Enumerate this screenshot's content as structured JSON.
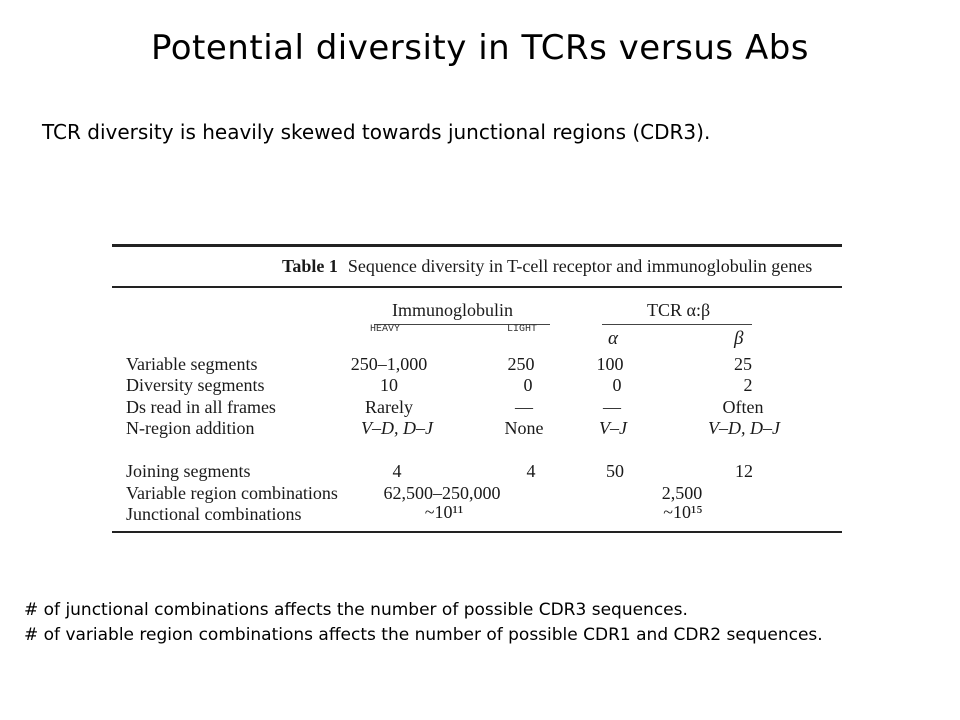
{
  "slide": {
    "title": "Potential diversity in TCRs versus Abs",
    "subtitle": "TCR diversity is heavily skewed towards junctional regions (CDR3)."
  },
  "table": {
    "caption_num": "Table 1",
    "caption_text": "Sequence diversity in T-cell receptor and immunoglobulin genes",
    "group_ig": "Immunoglobulin",
    "group_tcr": "TCR α:β",
    "sub_heavy": "HEAVY",
    "sub_light": "LIGHT",
    "sym_alpha": "α",
    "sym_beta": "β",
    "rows": [
      {
        "label": "Variable segments",
        "heavy": "250–1,000",
        "light": "250",
        "alpha": "100",
        "beta": "25"
      },
      {
        "label": "Diversity segments",
        "heavy": "10",
        "light": "0",
        "alpha": "0",
        "beta": "2"
      },
      {
        "label": "Ds read in all frames",
        "heavy": "Rarely",
        "light": "—",
        "alpha": "—",
        "beta": "Often"
      },
      {
        "label": "N-region addition",
        "heavy": "V–D, D–J",
        "light": "None",
        "alpha": "V–J",
        "beta": "V–D, D–J"
      },
      {
        "label": "Joining segments",
        "heavy": "4",
        "light": "4",
        "alpha": "50",
        "beta": "12"
      }
    ],
    "combos": [
      {
        "label": "Variable region combinations",
        "ig": "62,500–250,000",
        "tcr": "2,500"
      },
      {
        "label": "Junctional combinations",
        "ig": "~10¹¹",
        "tcr": "~10¹⁵"
      }
    ]
  },
  "notes": [
    "# of junctional combinations affects the number of possible CDR3 sequences.",
    "# of variable region combinations affects the number of possible CDR1 and CDR2 sequences."
  ]
}
